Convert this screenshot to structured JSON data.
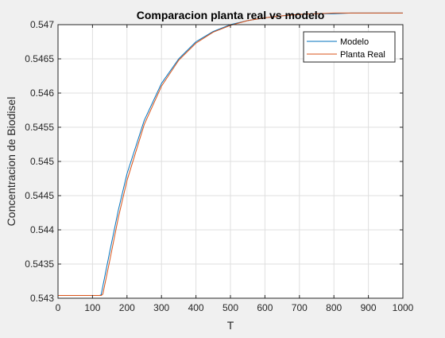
{
  "chart_data": {
    "type": "line",
    "title": "Comparacion planta real vs modelo",
    "xlabel": "T",
    "ylabel": "Concentracion de Biodisel",
    "xlim": [
      0,
      1000
    ],
    "ylim": [
      0.543,
      0.547
    ],
    "x_ticks": [
      0,
      100,
      200,
      300,
      400,
      500,
      600,
      700,
      800,
      900,
      1000
    ],
    "x_tick_labels": [
      "0",
      "100",
      "200",
      "300",
      "400",
      "500",
      "600",
      "700",
      "800",
      "900",
      "1000"
    ],
    "y_ticks": [
      0.543,
      0.5435,
      0.544,
      0.5445,
      0.545,
      0.5455,
      0.546,
      0.5465,
      0.547
    ],
    "y_tick_labels": [
      "0.543",
      "0.5435",
      "0.544",
      "0.5445",
      "0.545",
      "0.5455",
      "0.546",
      "0.5465",
      "0.547"
    ],
    "grid": true,
    "legend_position": "top-right",
    "series": [
      {
        "name": "Modelo",
        "color": "#0072bd",
        "x": [
          0,
          120,
          125,
          150,
          175,
          200,
          250,
          300,
          350,
          400,
          450,
          500,
          550,
          600,
          650,
          700,
          750,
          800,
          850,
          900,
          950,
          1000
        ],
        "y": [
          0.54304,
          0.54304,
          0.54305,
          0.54368,
          0.54429,
          0.54482,
          0.5456,
          0.54614,
          0.5465,
          0.54675,
          0.5469,
          0.547,
          0.54706,
          0.5471,
          0.54713,
          0.54715,
          0.54716,
          0.54716,
          0.54717,
          0.54717,
          0.54717,
          0.54717
        ]
      },
      {
        "name": "Planta Real",
        "color": "#d95319",
        "x": [
          0,
          125,
          130,
          150,
          175,
          200,
          250,
          300,
          350,
          400,
          450,
          500,
          550,
          600,
          650,
          700,
          750,
          800,
          850,
          900,
          950,
          1000
        ],
        "y": [
          0.54304,
          0.54304,
          0.54306,
          0.54355,
          0.54418,
          0.54472,
          0.54554,
          0.5461,
          0.54648,
          0.54673,
          0.54689,
          0.54699,
          0.54706,
          0.5471,
          0.54713,
          0.54715,
          0.54716,
          0.54717,
          0.54717,
          0.54717,
          0.54717,
          0.54717
        ]
      }
    ]
  }
}
